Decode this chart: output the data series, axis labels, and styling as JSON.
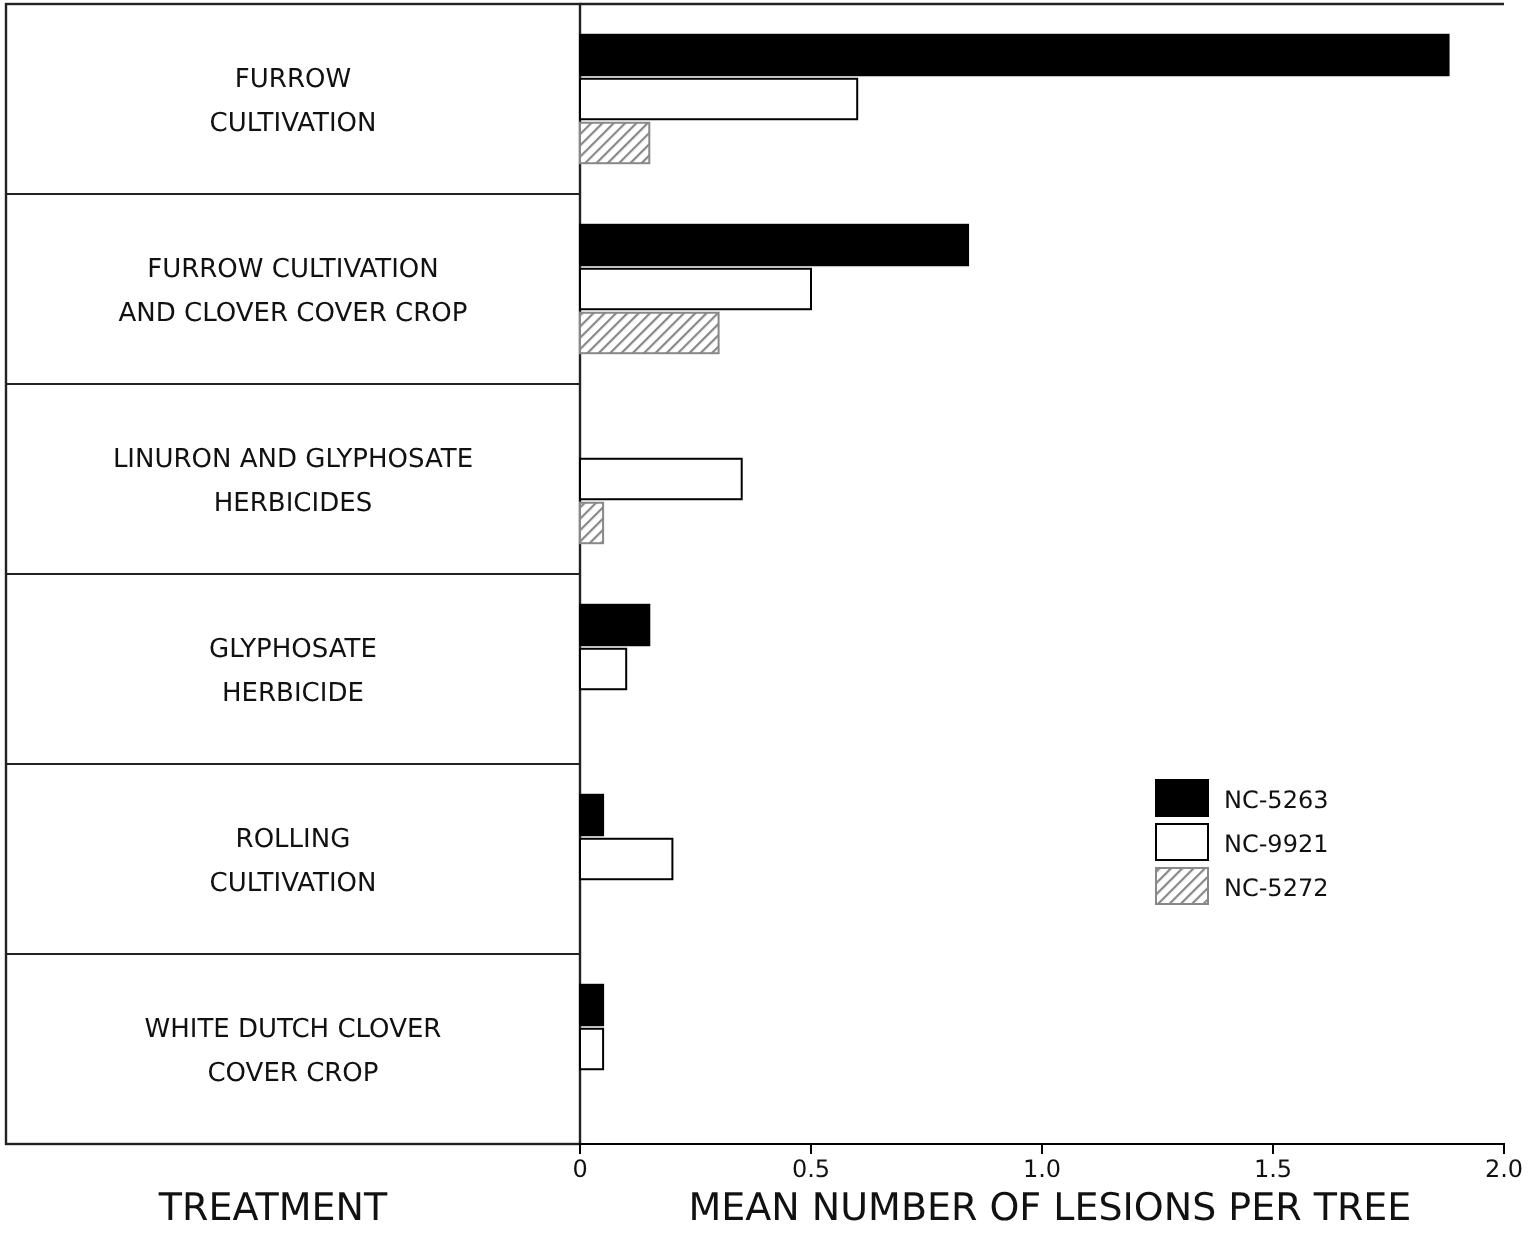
{
  "chart_data": {
    "type": "bar",
    "orientation": "horizontal",
    "xlabel": "MEAN NUMBER OF LESIONS PER TREE",
    "ylabel": "TREATMENT",
    "categories": [
      "FURROW\nCULTIVATION",
      "FURROW CULTIVATION\nAND CLOVER COVER CROP",
      "LINURON AND GLYPHOSATE\nHERBICIDES",
      "GLYPHOSATE\nHERBICIDE",
      "ROLLING\nCULTIVATION",
      "WHITE DUTCH CLOVER\nCOVER CROP"
    ],
    "series": [
      {
        "name": "NC-5263",
        "color": "#000000",
        "values": [
          1.88,
          0.84,
          null,
          0.15,
          0.05,
          0.05
        ]
      },
      {
        "name": "NC-9921",
        "color": "#ffffff",
        "values": [
          0.6,
          0.5,
          0.35,
          0.1,
          0.2,
          0.05
        ]
      },
      {
        "name": "NC-5272",
        "color": "#888888",
        "values": [
          0.15,
          0.3,
          0.05,
          null,
          null,
          null
        ]
      }
    ],
    "xlim": [
      0,
      2
    ],
    "xticks": [
      0,
      0.5,
      {
        "value": 1,
        "label": "1.0"
      },
      1.5,
      {
        "value": 2,
        "label": "2.0"
      }
    ],
    "legend": "right",
    "grid": false
  }
}
